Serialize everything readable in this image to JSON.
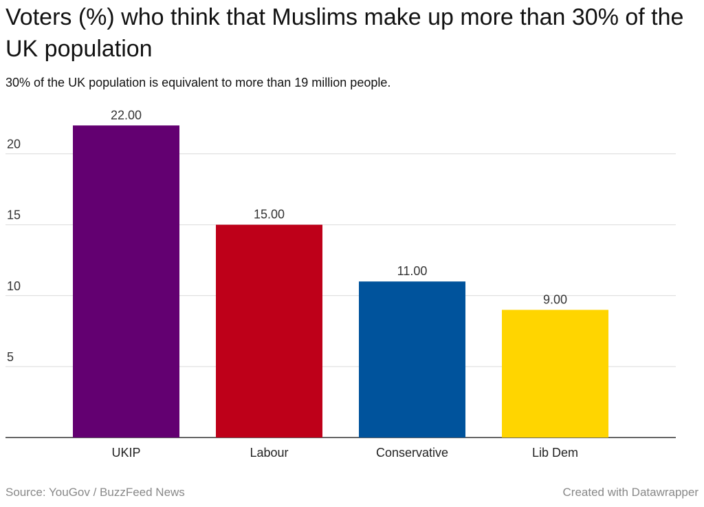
{
  "header": {
    "title": "Voters (%) who think that Muslims make up more than 30% of the UK population",
    "subtitle": "30% of the UK population is equivalent to more than 19 million people."
  },
  "footer": {
    "source": "Source: YouGov / BuzzFeed News",
    "credit": "Created with Datawrapper"
  },
  "chart_data": {
    "type": "bar",
    "categories": [
      "UKIP",
      "Labour",
      "Conservative",
      "Lib Dem"
    ],
    "values": [
      22,
      15,
      11,
      9
    ],
    "value_labels": [
      "22.00",
      "15.00",
      "11.00",
      "9.00"
    ],
    "colors": [
      "#630071",
      "#be0019",
      "#00539c",
      "#ffd500"
    ],
    "title": "Voters (%) who think that Muslims make up more than 30% of the UK population",
    "subtitle": "30% of the UK population is equivalent to more than 19 million people.",
    "xlabel": "",
    "ylabel": "",
    "yticks": [
      5,
      10,
      15,
      20
    ],
    "ylim": [
      0,
      23.5
    ],
    "grid": true,
    "legend": "none"
  }
}
